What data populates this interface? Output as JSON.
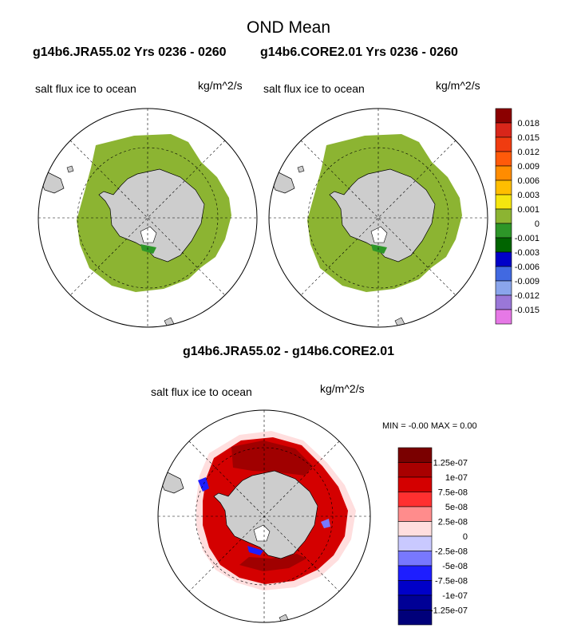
{
  "figure": {
    "main_title": "OND Mean",
    "left_title": "g14b6.JRA55.02  Yrs 0236 - 0260",
    "right_title": "g14b6.CORE2.01  Yrs 0236 - 0260",
    "diff_title": "g14b6.JRA55.02 - g14b6.CORE2.01",
    "var_left": "salt flux ice to ocean",
    "unit_left": "kg/m^2/s",
    "var_right": "salt flux ice to ocean",
    "unit_right": "kg/m^2/s",
    "var_diff": "salt flux ice to ocean",
    "unit_diff": "kg/m^2/s",
    "min_label": "MIN =",
    "min_value": "-0.00",
    "max_label": "MAX =",
    "max_value": "0.00"
  },
  "chart_data": [
    {
      "type": "heatmap",
      "title": "g14b6.JRA55.02  Yrs 0236 - 0260",
      "subtitle": "salt flux ice to ocean",
      "units": "kg/m^2/s",
      "projection": "south polar stereographic",
      "dominant_value_bin": "0 to 0.001"
    },
    {
      "type": "heatmap",
      "title": "g14b6.CORE2.01  Yrs 0236 - 0260",
      "subtitle": "salt flux ice to ocean",
      "units": "kg/m^2/s",
      "projection": "south polar stereographic",
      "dominant_value_bin": "0 to 0.001"
    },
    {
      "type": "heatmap",
      "title": "g14b6.JRA55.02 - g14b6.CORE2.01",
      "subtitle": "salt flux ice to ocean",
      "units": "kg/m^2/s",
      "projection": "south polar stereographic",
      "min": -0.0,
      "max": 0.0
    }
  ],
  "colorbar_top": {
    "labels": [
      "0.018",
      "0.015",
      "0.012",
      "0.009",
      "0.006",
      "0.003",
      "0.001",
      "0",
      "-0.001",
      "-0.003",
      "-0.006",
      "-0.009",
      "-0.012",
      "-0.015"
    ],
    "colors": [
      "#8b0000",
      "#d8261a",
      "#f03c10",
      "#ff5a0a",
      "#ff8c00",
      "#ffbe00",
      "#f5e60f",
      "#8cb432",
      "#2d9628",
      "#006400",
      "#0000c8",
      "#4169e1",
      "#8aa5ec",
      "#9a77d8",
      "#e678e6"
    ]
  },
  "colorbar_diff": {
    "labels": [
      "1.25e-07",
      "1e-07",
      "7.5e-08",
      "5e-08",
      "2.5e-08",
      "0",
      "-2.5e-08",
      "-5e-08",
      "-7.5e-08",
      "-1e-07",
      "-1.25e-07"
    ],
    "colors": [
      "#7a0000",
      "#a80000",
      "#d40000",
      "#ff3030",
      "#ff8c8c",
      "#ffdede",
      "#c9c9ff",
      "#7878ff",
      "#1e1eff",
      "#0000c8",
      "#000096",
      "#00007a"
    ]
  },
  "colors": {
    "land": "#cdcdcd",
    "ice_field": "#8cb432",
    "ice_coast": "#2d9628",
    "diff_red": "#d40000",
    "diff_dark_red": "#a00000",
    "diff_blue": "#1e1eff"
  }
}
